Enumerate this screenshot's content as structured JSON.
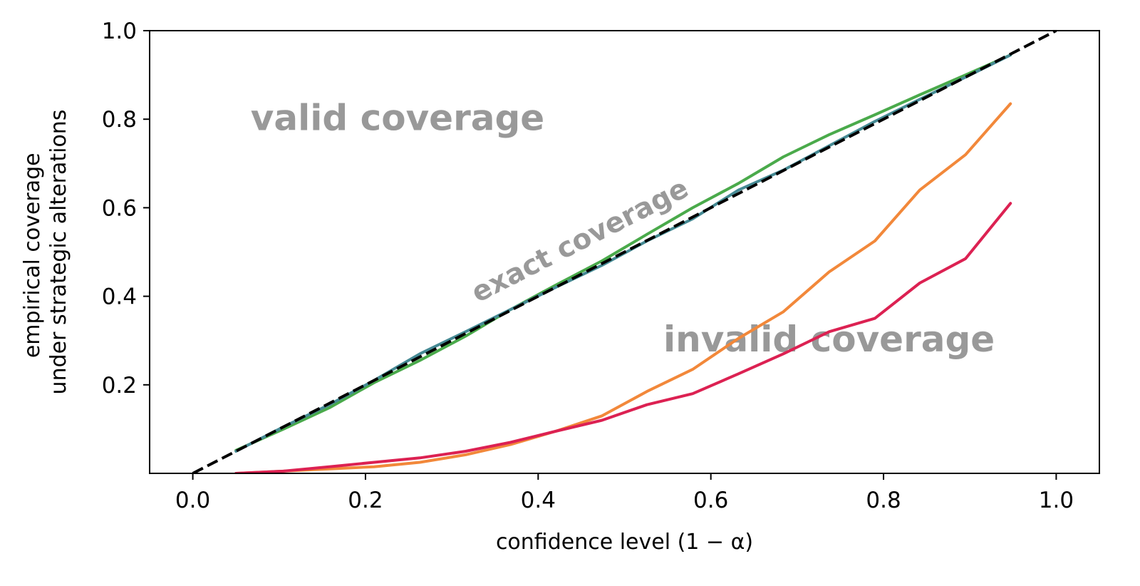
{
  "chart_data": {
    "type": "line",
    "xlabel": "confidence level (1 − α)",
    "ylabel_lines": [
      "empirical coverage",
      "under strategic alterations"
    ],
    "xlim": [
      -0.05,
      1.05
    ],
    "ylim": [
      0.0,
      1.0
    ],
    "xticks": [
      0.0,
      0.2,
      0.4,
      0.6,
      0.8,
      1.0
    ],
    "xtick_labels": [
      "0.0",
      "0.2",
      "0.4",
      "0.6",
      "0.8",
      "1.0"
    ],
    "yticks": [
      0.2,
      0.4,
      0.6,
      0.8,
      1.0
    ],
    "ytick_labels": [
      "0.2",
      "0.4",
      "0.6",
      "0.8",
      "1.0"
    ],
    "grid": false,
    "legend": "none",
    "annotations": [
      {
        "text": "valid coverage",
        "x": 0.067,
        "y": 0.775,
        "rotation": 0,
        "size": 50
      },
      {
        "text": "exact coverage",
        "x": 0.33,
        "y": 0.385,
        "rotation": -27,
        "size": 39
      },
      {
        "text": "invalid coverage",
        "x": 0.545,
        "y": 0.275,
        "rotation": 0,
        "size": 50
      }
    ],
    "reference_line": {
      "x": [
        0.0,
        1.0
      ],
      "y": [
        0.0,
        1.0
      ],
      "color": "#000000",
      "style": "dashed"
    },
    "series": [
      {
        "color": "#4aaa4b",
        "x": [
          0.05,
          0.105,
          0.158,
          0.21,
          0.263,
          0.316,
          0.368,
          0.42,
          0.474,
          0.526,
          0.579,
          0.632,
          0.684,
          0.737,
          0.79,
          0.842,
          0.895,
          0.947
        ],
        "y": [
          0.052,
          0.1,
          0.148,
          0.205,
          0.255,
          0.31,
          0.37,
          0.425,
          0.48,
          0.54,
          0.6,
          0.655,
          0.715,
          0.765,
          0.81,
          0.855,
          0.9,
          0.945
        ]
      },
      {
        "color": "#458a94",
        "x": [
          0.05,
          0.105,
          0.158,
          0.21,
          0.263,
          0.316,
          0.368,
          0.42,
          0.474,
          0.526,
          0.579,
          0.632,
          0.684,
          0.737,
          0.79,
          0.842,
          0.895,
          0.947
        ],
        "y": [
          0.05,
          0.105,
          0.155,
          0.21,
          0.27,
          0.32,
          0.37,
          0.42,
          0.47,
          0.525,
          0.575,
          0.64,
          0.685,
          0.74,
          0.795,
          0.845,
          0.895,
          0.945
        ]
      },
      {
        "color": "#f2883a",
        "x": [
          0.05,
          0.105,
          0.158,
          0.21,
          0.263,
          0.316,
          0.368,
          0.42,
          0.474,
          0.526,
          0.579,
          0.632,
          0.684,
          0.737,
          0.79,
          0.842,
          0.895,
          0.947
        ],
        "y": [
          0.0,
          0.005,
          0.01,
          0.015,
          0.025,
          0.042,
          0.065,
          0.095,
          0.13,
          0.185,
          0.235,
          0.305,
          0.365,
          0.455,
          0.525,
          0.64,
          0.72,
          0.835
        ]
      },
      {
        "color": "#dc2152",
        "x": [
          0.05,
          0.105,
          0.158,
          0.21,
          0.263,
          0.316,
          0.368,
          0.42,
          0.474,
          0.526,
          0.579,
          0.632,
          0.684,
          0.737,
          0.79,
          0.842,
          0.895,
          0.947
        ],
        "y": [
          0.0,
          0.005,
          0.015,
          0.025,
          0.035,
          0.05,
          0.07,
          0.095,
          0.12,
          0.155,
          0.18,
          0.225,
          0.27,
          0.32,
          0.35,
          0.43,
          0.485,
          0.61
        ]
      }
    ]
  }
}
